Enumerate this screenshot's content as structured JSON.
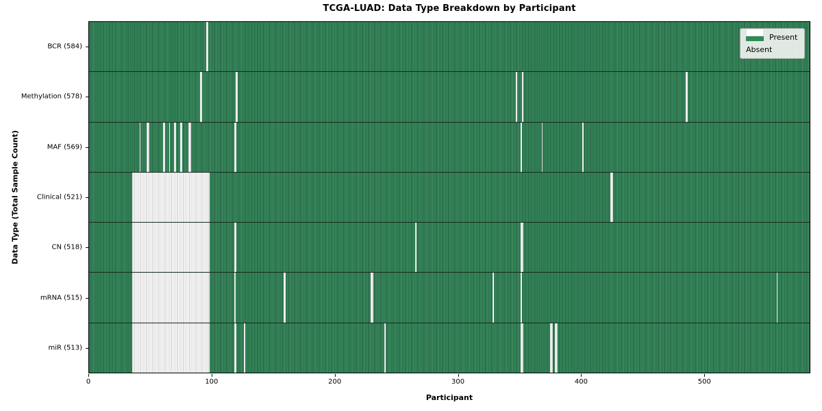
{
  "chart_data": {
    "type": "heatmap",
    "title": "TCGA-LUAD: Data Type Breakdown by Participant",
    "xlabel": "Participant",
    "ylabel": "Data Type (Total Sample Count)",
    "x_ticks": [
      0,
      100,
      200,
      300,
      400,
      500
    ],
    "x_range": [
      0,
      586
    ],
    "n_participants": 586,
    "grid": false,
    "legend_position": "upper right",
    "legend": [
      {
        "label": "Present",
        "color": "#2e8b57"
      },
      {
        "label": "Absent",
        "color": "#ffffff"
      }
    ],
    "rows": [
      {
        "label": "BCR (584)",
        "data_type": "BCR",
        "total_samples": 584,
        "absent_ranges": [
          [
            95,
            2
          ]
        ]
      },
      {
        "label": "Methylation (578)",
        "data_type": "Methylation",
        "total_samples": 578,
        "absent_ranges": [
          [
            90,
            2
          ],
          [
            119,
            2
          ],
          [
            347,
            1
          ],
          [
            352,
            1
          ],
          [
            485,
            2
          ]
        ]
      },
      {
        "label": "MAF (569)",
        "data_type": "MAF",
        "total_samples": 569,
        "absent_ranges": [
          [
            41,
            1
          ],
          [
            47,
            2
          ],
          [
            60,
            2
          ],
          [
            65,
            1
          ],
          [
            69,
            2
          ],
          [
            74,
            2
          ],
          [
            81,
            2
          ],
          [
            118,
            2
          ],
          [
            351,
            1
          ],
          [
            368,
            1
          ],
          [
            401,
            1
          ]
        ]
      },
      {
        "label": "Clinical (521)",
        "data_type": "Clinical",
        "total_samples": 521,
        "absent_ranges": [
          [
            35,
            63
          ],
          [
            424,
            2
          ]
        ]
      },
      {
        "label": "CN (518)",
        "data_type": "CN",
        "total_samples": 518,
        "absent_ranges": [
          [
            35,
            63
          ],
          [
            118,
            2
          ],
          [
            265,
            1
          ],
          [
            351,
            2
          ]
        ]
      },
      {
        "label": "mRNA (515)",
        "data_type": "mRNA",
        "total_samples": 515,
        "absent_ranges": [
          [
            35,
            63
          ],
          [
            118,
            1
          ],
          [
            158,
            2
          ],
          [
            229,
            2
          ],
          [
            328,
            1
          ],
          [
            351,
            1
          ],
          [
            559,
            1
          ]
        ]
      },
      {
        "label": "miR (513)",
        "data_type": "miR",
        "total_samples": 513,
        "absent_ranges": [
          [
            35,
            63
          ],
          [
            118,
            2
          ],
          [
            126,
            1
          ],
          [
            240,
            1
          ],
          [
            351,
            2
          ],
          [
            375,
            2
          ],
          [
            379,
            2
          ]
        ]
      }
    ]
  }
}
